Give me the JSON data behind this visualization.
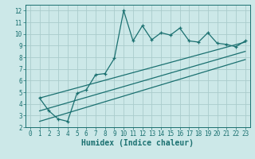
{
  "xlabel": "Humidex (Indice chaleur)",
  "bg_color": "#cce8e8",
  "grid_color": "#aacccc",
  "line_color": "#1a7070",
  "spine_color": "#1a7070",
  "xlim": [
    -0.5,
    23.5
  ],
  "ylim": [
    2,
    12.5
  ],
  "yticks": [
    2,
    3,
    4,
    5,
    6,
    7,
    8,
    9,
    10,
    11,
    12
  ],
  "xticks": [
    0,
    1,
    2,
    3,
    4,
    5,
    6,
    7,
    8,
    9,
    10,
    11,
    12,
    13,
    14,
    15,
    16,
    17,
    18,
    19,
    20,
    21,
    22,
    23
  ],
  "series1_x": [
    1,
    2,
    3,
    4,
    5,
    6,
    7,
    8,
    9,
    10,
    11,
    12,
    13,
    14,
    15,
    16,
    17,
    18,
    19,
    20,
    21,
    22,
    23
  ],
  "series1_y": [
    4.5,
    3.4,
    2.7,
    2.5,
    4.9,
    5.2,
    6.5,
    6.6,
    7.9,
    12.0,
    9.4,
    10.7,
    9.5,
    10.1,
    9.9,
    10.5,
    9.4,
    9.3,
    10.1,
    9.2,
    9.1,
    8.9,
    9.4
  ],
  "line1_x": [
    1,
    23
  ],
  "line1_y": [
    4.5,
    9.3
  ],
  "line2_x": [
    1,
    23
  ],
  "line2_y": [
    3.4,
    8.5
  ],
  "line3_x": [
    1,
    23
  ],
  "line3_y": [
    2.5,
    7.8
  ],
  "tick_fontsize": 5.5,
  "xlabel_fontsize": 7
}
